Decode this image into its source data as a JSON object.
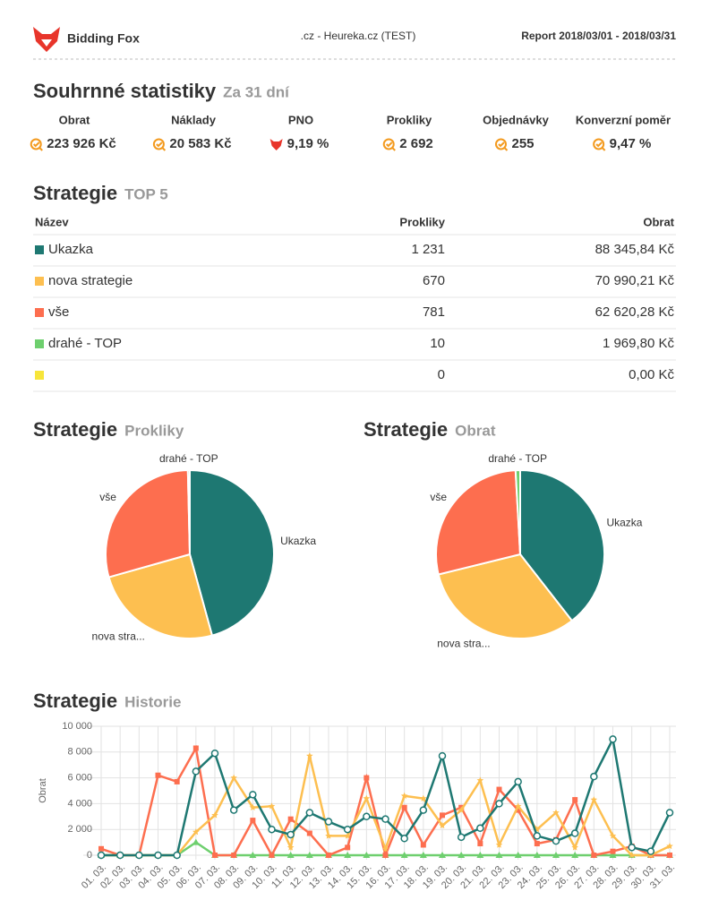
{
  "header": {
    "brand": "Bidding Fox",
    "shop": ".cz - Heureka.cz (TEST)",
    "report": "Report 2018/03/01 - 2018/03/31"
  },
  "summary": {
    "title": "Souhrnné statistiky",
    "subtitle": "Za 31 dní",
    "items": [
      {
        "label": "Obrat",
        "value": "223 926 Kč",
        "icon": "target"
      },
      {
        "label": "Náklady",
        "value": "20 583 Kč",
        "icon": "target"
      },
      {
        "label": "PNO",
        "value": "9,19 %",
        "icon": "fox"
      },
      {
        "label": "Prokliky",
        "value": "2 692",
        "icon": "target"
      },
      {
        "label": "Objednávky",
        "value": "255",
        "icon": "target"
      },
      {
        "label": "Konverzní poměr",
        "value": "9,47 %",
        "icon": "target"
      }
    ]
  },
  "strategies": {
    "title": "Strategie",
    "subtitle": "TOP 5",
    "headers": [
      "Název",
      "Prokliky",
      "Obrat"
    ],
    "rows": [
      {
        "name": "Ukazka",
        "color": "#1e7872",
        "clicks": "1 231",
        "revenue": "88 345,84 Kč"
      },
      {
        "name": "nova strategie",
        "color": "#fdbf50",
        "clicks": "670",
        "revenue": "70 990,21 Kč"
      },
      {
        "name": "vše",
        "color": "#fd6e4f",
        "clicks": "781",
        "revenue": "62 620,28 Kč"
      },
      {
        "name": "drahé - TOP",
        "color": "#6ecf6e",
        "clicks": "10",
        "revenue": "1 969,80 Kč"
      },
      {
        "name": null,
        "color": "#f7e53a",
        "clicks": "0",
        "revenue": "0,00 Kč"
      }
    ]
  },
  "chart_data": [
    {
      "type": "pie",
      "title": "Strategie",
      "subtitle": "Prokliky",
      "categories": [
        "Ukazka",
        "nova stra...",
        "vše",
        "drahé - TOP",
        null
      ],
      "values": [
        1231,
        670,
        781,
        10,
        0
      ],
      "colors": [
        "#1e7872",
        "#fdbf50",
        "#fd6e4f",
        "#6ecf6e",
        "#f7e53a"
      ]
    },
    {
      "type": "pie",
      "title": "Strategie",
      "subtitle": "Obrat",
      "categories": [
        "Ukazka",
        "nova stra...",
        "vše",
        "drahé - TOP",
        null
      ],
      "values": [
        88345.84,
        70990.21,
        62620.28,
        1969.8,
        0
      ],
      "colors": [
        "#1e7872",
        "#fdbf50",
        "#fd6e4f",
        "#6ecf6e",
        "#f7e53a"
      ]
    },
    {
      "type": "line",
      "title": "Strategie",
      "subtitle": "Historie",
      "y_label": "Obrat",
      "categories": [
        "01. 03.",
        "02. 03.",
        "03. 03.",
        "04. 03.",
        "05. 03.",
        "06. 03.",
        "07. 03.",
        "08. 03.",
        "09. 03.",
        "10. 03.",
        "11. 03.",
        "12. 03.",
        "13. 03.",
        "14. 03.",
        "15. 03.",
        "16. 03.",
        "17. 03.",
        "18. 03.",
        "19. 03.",
        "20. 03.",
        "21. 03.",
        "22. 03.",
        "23. 03.",
        "24. 03.",
        "25. 03.",
        "26. 03.",
        "27. 03.",
        "28. 03.",
        "29. 03.",
        "30. 03.",
        "31. 03."
      ],
      "ylim": [
        0,
        10000
      ],
      "yticks": [
        0,
        {
          "value": 2000,
          "label": "2 000"
        },
        {
          "value": 4000,
          "label": "4 000"
        },
        {
          "value": 6000,
          "label": "6 000"
        },
        {
          "value": 8000,
          "label": "8 000"
        },
        {
          "value": 10000,
          "label": "10 000"
        }
      ],
      "grid": true,
      "series": [
        {
          "color": "#1e7872",
          "marker": "circle",
          "values": [
            0,
            0,
            0,
            0,
            0,
            6500,
            7900,
            3500,
            4700,
            2000,
            1600,
            3300,
            2600,
            2000,
            3000,
            2800,
            1300,
            3500,
            7700,
            1400,
            2100,
            4000,
            5700,
            1500,
            1100,
            1700,
            6100,
            9000,
            600,
            300,
            3300
          ]
        },
        {
          "color": "#fdbf50",
          "marker": "star",
          "values": [
            0,
            0,
            0,
            0,
            0,
            1800,
            3100,
            6000,
            3700,
            3800,
            600,
            7700,
            1500,
            1500,
            4400,
            500,
            4600,
            4400,
            2300,
            3500,
            5800,
            800,
            3800,
            2000,
            3300,
            600,
            4300,
            1500,
            0,
            0,
            700
          ]
        },
        {
          "color": "#fd6e4f",
          "marker": "square",
          "values": [
            500,
            0,
            0,
            6200,
            5700,
            8300,
            0,
            0,
            2700,
            0,
            2800,
            1700,
            0,
            600,
            6000,
            0,
            3700,
            800,
            3100,
            3700,
            900,
            5100,
            3500,
            900,
            1200,
            4300,
            0,
            300,
            700,
            0,
            0
          ]
        },
        {
          "color": "#6ecf6e",
          "marker": "triangle",
          "values": [
            0,
            0,
            0,
            0,
            0,
            1000,
            0,
            0,
            0,
            0,
            0,
            0,
            0,
            0,
            0,
            0,
            0,
            0,
            0,
            0,
            0,
            0,
            0,
            0,
            0,
            0,
            0,
            0,
            0,
            0,
            0
          ]
        }
      ]
    }
  ]
}
